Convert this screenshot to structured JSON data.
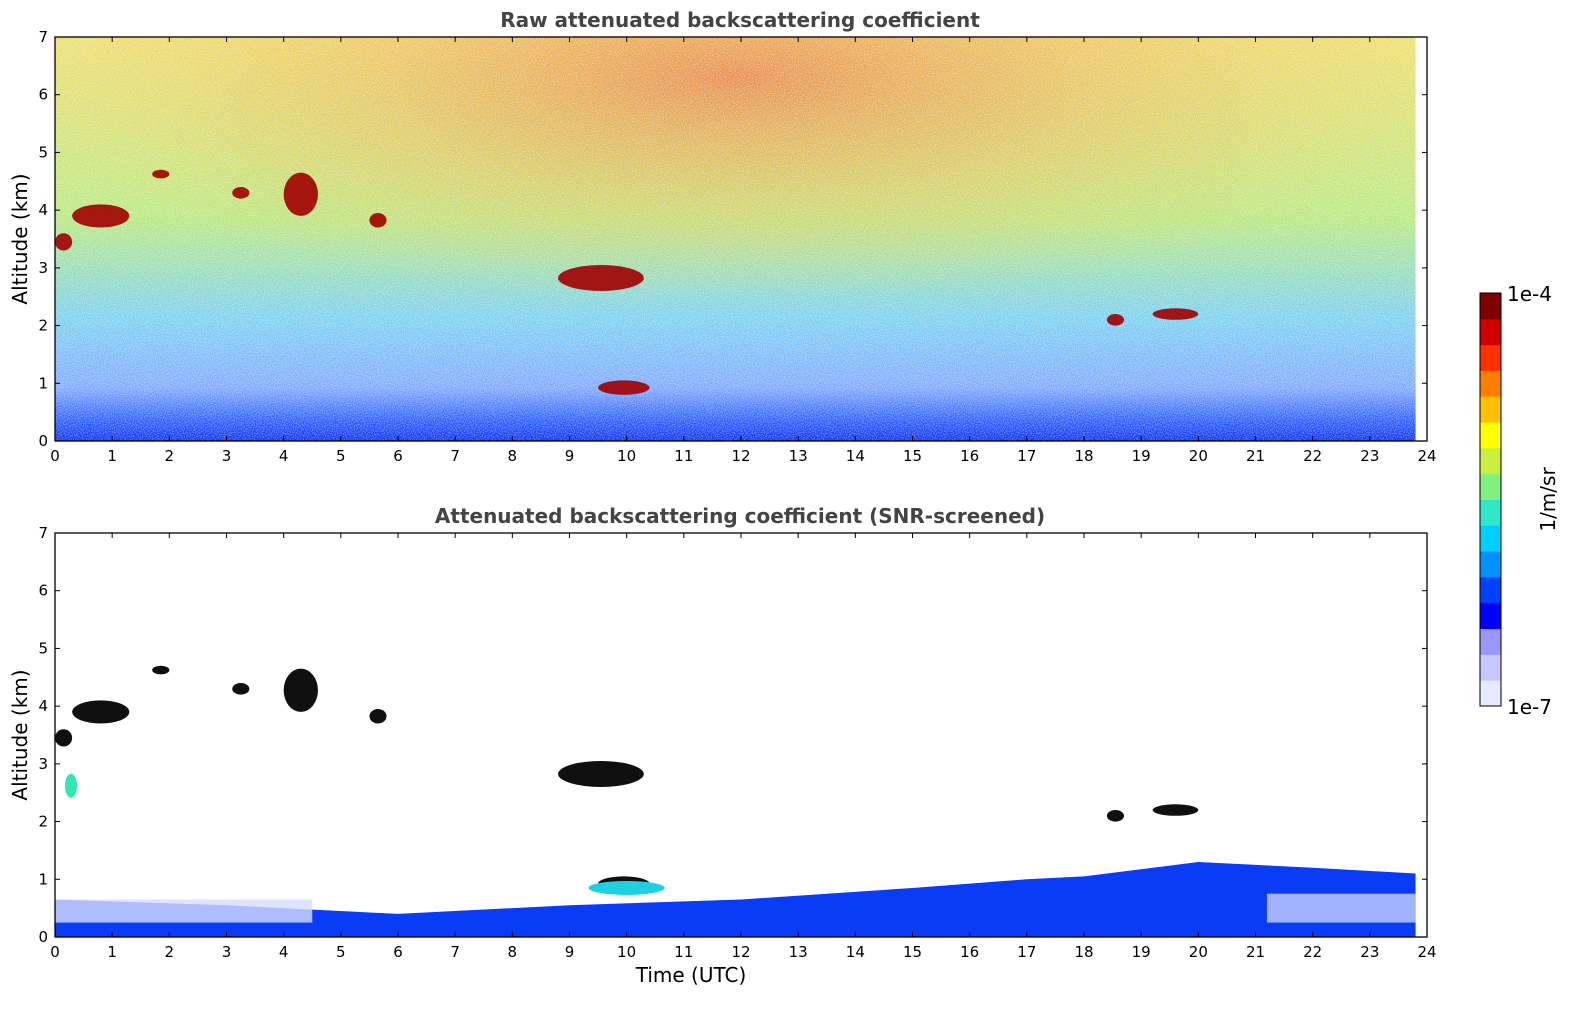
{
  "chart_data": [
    {
      "type": "heatmap",
      "title": "Raw attenuated backscattering coefficient",
      "xlabel": "",
      "ylabel": "Altitude (km)",
      "xlim": [
        0,
        24
      ],
      "ylim": [
        0,
        7
      ],
      "xticks": [
        "0",
        "1",
        "2",
        "3",
        "4",
        "5",
        "6",
        "7",
        "8",
        "9",
        "10",
        "11",
        "12",
        "13",
        "14",
        "15",
        "16",
        "17",
        "18",
        "19",
        "20",
        "21",
        "22",
        "23",
        "24"
      ],
      "yticks": [
        "0",
        "1",
        "2",
        "3",
        "4",
        "5",
        "6",
        "7"
      ],
      "data_extent_hours": [
        0,
        23.8
      ],
      "features": [
        {
          "kind": "cloud",
          "t": [
            0.0,
            0.3
          ],
          "alt": [
            3.3,
            3.6
          ]
        },
        {
          "kind": "cloud",
          "t": [
            0.3,
            1.3
          ],
          "alt": [
            3.7,
            4.1
          ]
        },
        {
          "kind": "cloud",
          "t": [
            1.7,
            2.0
          ],
          "alt": [
            4.55,
            4.7
          ]
        },
        {
          "kind": "cloud",
          "t": [
            3.1,
            3.4
          ],
          "alt": [
            4.2,
            4.4
          ]
        },
        {
          "kind": "cloud",
          "t": [
            4.0,
            4.6
          ],
          "alt": [
            3.9,
            4.65
          ]
        },
        {
          "kind": "cloud",
          "t": [
            5.5,
            5.8
          ],
          "alt": [
            3.7,
            3.95
          ]
        },
        {
          "kind": "cloud",
          "t": [
            8.8,
            10.3
          ],
          "alt": [
            2.6,
            3.05
          ]
        },
        {
          "kind": "cloud",
          "t": [
            9.5,
            10.4
          ],
          "alt": [
            0.8,
            1.05
          ]
        },
        {
          "kind": "cloud",
          "t": [
            18.4,
            18.7
          ],
          "alt": [
            2.0,
            2.2
          ]
        },
        {
          "kind": "cloud",
          "t": [
            19.2,
            20.0
          ],
          "alt": [
            2.1,
            2.3
          ]
        }
      ]
    },
    {
      "type": "heatmap",
      "title": "Attenuated backscattering coefficient (SNR-screened)",
      "xlabel": "Time (UTC)",
      "ylabel": "Altitude (km)",
      "xlim": [
        0,
        24
      ],
      "ylim": [
        0,
        7
      ],
      "xticks": [
        "0",
        "1",
        "2",
        "3",
        "4",
        "5",
        "6",
        "7",
        "8",
        "9",
        "10",
        "11",
        "12",
        "13",
        "14",
        "15",
        "16",
        "17",
        "18",
        "19",
        "20",
        "21",
        "22",
        "23",
        "24"
      ],
      "yticks": [
        "0",
        "1",
        "2",
        "3",
        "4",
        "5",
        "6",
        "7"
      ],
      "data_extent_hours": [
        0,
        23.8
      ],
      "boundary_layer_top_km": [
        [
          0,
          0.65
        ],
        [
          3,
          0.55
        ],
        [
          6,
          0.4
        ],
        [
          9,
          0.55
        ],
        [
          12,
          0.65
        ],
        [
          15,
          0.85
        ],
        [
          17,
          1.0
        ],
        [
          18,
          1.05
        ],
        [
          20,
          1.3
        ],
        [
          22,
          1.2
        ],
        [
          23.8,
          1.1
        ]
      ]
    }
  ],
  "colorbar": {
    "label": "1/m/sr",
    "min_label": "1e-7",
    "max_label": "1e-4",
    "colors": [
      "#e8e8ff",
      "#c8c8ff",
      "#9898ff",
      "#0000ff",
      "#0040ff",
      "#0090ff",
      "#00d0ff",
      "#30e8c8",
      "#80f080",
      "#c8f040",
      "#ffff00",
      "#ffc000",
      "#ff8000",
      "#ff3000",
      "#d00000",
      "#800000"
    ]
  }
}
